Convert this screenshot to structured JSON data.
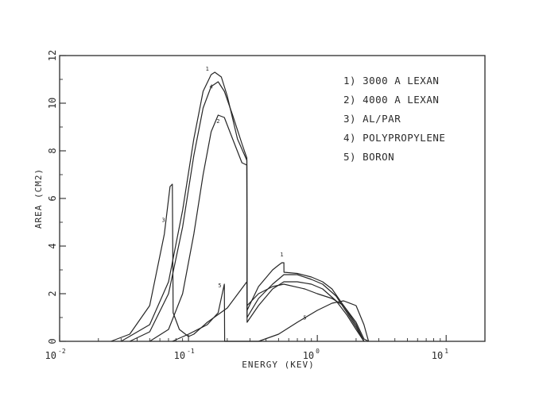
{
  "chart_data": {
    "type": "line",
    "xlabel": "ENERGY (KEV)",
    "ylabel": "AREA (CM2)",
    "x_scale": "log",
    "xlim": [
      0.01,
      20
    ],
    "ylim": [
      0,
      12
    ],
    "x_ticks": [
      {
        "value": 0.01,
        "base": "10",
        "exp": "-2"
      },
      {
        "value": 0.1,
        "base": "10",
        "exp": "-1"
      },
      {
        "value": 1,
        "base": "10",
        "exp": "0"
      },
      {
        "value": 10,
        "base": "10",
        "exp": "1"
      }
    ],
    "y_ticks": [
      "0",
      "2",
      "4",
      "6",
      "8",
      "10",
      "12"
    ],
    "legend": [
      "1) 3000 A LEXAN",
      "2) 4000 A LEXAN",
      "3) AL/PAR",
      "4) POLYPROPYLENE",
      "5) BORON"
    ],
    "legend_position": "top-right",
    "series": [
      {
        "id": "1",
        "tag": "1",
        "points": [
          [
            0.03,
            0
          ],
          [
            0.05,
            0.7
          ],
          [
            0.07,
            2.5
          ],
          [
            0.09,
            5.5
          ],
          [
            0.11,
            8.5
          ],
          [
            0.13,
            10.5
          ],
          [
            0.15,
            11.2
          ],
          [
            0.16,
            11.3
          ],
          [
            0.18,
            11.1
          ],
          [
            0.2,
            10.3
          ],
          [
            0.24,
            8.5
          ],
          [
            0.284,
            7.6
          ],
          [
            0.285,
            1.3
          ],
          [
            0.35,
            2.3
          ],
          [
            0.45,
            3
          ],
          [
            0.5,
            3.2
          ],
          [
            0.53,
            3.3
          ],
          [
            0.54,
            3.3
          ],
          [
            0.55,
            3.3
          ],
          [
            0.551,
            2.9
          ],
          [
            0.7,
            2.85
          ],
          [
            0.9,
            2.7
          ],
          [
            1.1,
            2.5
          ],
          [
            1.3,
            2.2
          ],
          [
            1.6,
            1.5
          ],
          [
            2,
            0.8
          ],
          [
            2.3,
            0.1
          ],
          [
            2.5,
            0
          ]
        ],
        "tags": [
          [
            0.14,
            11.3
          ],
          [
            0.53,
            3.5
          ]
        ]
      },
      {
        "id": "2",
        "tag": "2",
        "points": [
          [
            0.05,
            0
          ],
          [
            0.07,
            0.5
          ],
          [
            0.09,
            2
          ],
          [
            0.11,
            4.5
          ],
          [
            0.13,
            7
          ],
          [
            0.15,
            8.8
          ],
          [
            0.17,
            9.5
          ],
          [
            0.19,
            9.4
          ],
          [
            0.22,
            8.5
          ],
          [
            0.26,
            7.5
          ],
          [
            0.284,
            7.4
          ],
          [
            0.285,
            0.8
          ],
          [
            0.35,
            1.5
          ],
          [
            0.45,
            2.2
          ],
          [
            0.55,
            2.5
          ],
          [
            0.7,
            2.5
          ],
          [
            0.9,
            2.4
          ],
          [
            1.1,
            2.2
          ],
          [
            1.4,
            1.7
          ],
          [
            1.7,
            1.1
          ],
          [
            2,
            0.5
          ],
          [
            2.3,
            0
          ]
        ],
        "tags": [
          [
            0.17,
            9.1
          ]
        ]
      },
      {
        "id": "3",
        "tag": "3",
        "points": [
          [
            0.025,
            0
          ],
          [
            0.035,
            0.3
          ],
          [
            0.05,
            1.5
          ],
          [
            0.065,
            4.5
          ],
          [
            0.072,
            6.5
          ],
          [
            0.075,
            6.6
          ],
          [
            0.076,
            1.2
          ],
          [
            0.085,
            0.5
          ],
          [
            0.1,
            0.2
          ],
          [
            0.11,
            0.3
          ],
          [
            0.14,
            0.8
          ],
          [
            0.2,
            1.4
          ],
          [
            0.284,
            2.5
          ],
          [
            0.285,
            1.5
          ],
          [
            0.35,
            2
          ],
          [
            0.45,
            2.3
          ],
          [
            0.55,
            2.4
          ],
          [
            0.8,
            2.2
          ],
          [
            1,
            2
          ],
          [
            1.3,
            1.8
          ],
          [
            1.6,
            1.5
          ],
          [
            2,
            0.7
          ],
          [
            2.3,
            0
          ]
        ],
        "tags": [
          [
            0.064,
            4.95
          ]
        ]
      },
      {
        "id": "4",
        "tag": "4",
        "points": [
          [
            0.035,
            0
          ],
          [
            0.05,
            0.4
          ],
          [
            0.07,
            2
          ],
          [
            0.09,
            4.8
          ],
          [
            0.11,
            7.8
          ],
          [
            0.13,
            9.8
          ],
          [
            0.15,
            10.7
          ],
          [
            0.17,
            10.9
          ],
          [
            0.19,
            10.5
          ],
          [
            0.22,
            9.5
          ],
          [
            0.26,
            8.3
          ],
          [
            0.284,
            7.7
          ],
          [
            0.285,
            1
          ],
          [
            0.35,
            1.8
          ],
          [
            0.45,
            2.4
          ],
          [
            0.55,
            2.8
          ],
          [
            0.7,
            2.8
          ],
          [
            0.9,
            2.6
          ],
          [
            1.1,
            2.4
          ],
          [
            1.4,
            1.9
          ],
          [
            1.7,
            1.2
          ],
          [
            2,
            0.6
          ],
          [
            2.3,
            0
          ]
        ],
        "tags": [
          [
            0.15,
            10.55
          ]
        ]
      },
      {
        "id": "5",
        "tag": "5",
        "points": [
          [
            0.075,
            0
          ],
          [
            0.1,
            0.3
          ],
          [
            0.14,
            0.7
          ],
          [
            0.17,
            1.2
          ],
          [
            0.188,
            2.3
          ],
          [
            0.19,
            2.4
          ],
          [
            0.191,
            0
          ],
          [
            0.35,
            0
          ],
          [
            0.5,
            0.3
          ],
          [
            0.7,
            0.8
          ],
          [
            1,
            1.3
          ],
          [
            1.3,
            1.6
          ],
          [
            1.6,
            1.7
          ],
          [
            2,
            1.5
          ],
          [
            2.3,
            0.7
          ],
          [
            2.5,
            0
          ]
        ],
        "tags": [
          [
            0.175,
            2.2
          ],
          [
            0.8,
            0.85
          ]
        ]
      }
    ]
  }
}
